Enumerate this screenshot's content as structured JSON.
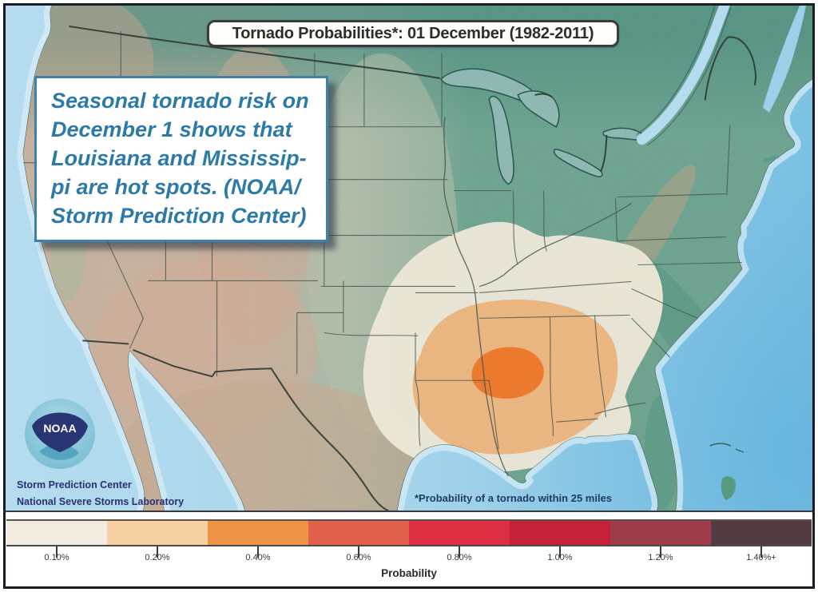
{
  "map": {
    "title": "Tornado Probabilities*: 01 December (1982-2011)",
    "footnote": "*Probability of a tornado within 25 miles",
    "agency_line1": "Storm Prediction Center",
    "agency_line2": "National Severe Storms Laboratory",
    "logo_text": "NOAA",
    "contours": [
      {
        "level": "0.10%",
        "color": "#ece7d7"
      },
      {
        "level": "0.20%",
        "color": "#e9b47d"
      },
      {
        "level": "0.40%",
        "color": "#ec7a2e"
      }
    ]
  },
  "caption": {
    "lines": [
      "Seasonal tornado risk on",
      "December 1 shows that",
      "Louisiana and Mississip-",
      "pi are hot spots. (NOAA/",
      "Storm Prediction Center)"
    ],
    "text_color": "#2b7aa8",
    "border_color": "#3d81ad"
  },
  "legend": {
    "title": "Probability",
    "segments": [
      {
        "label": "0.10%",
        "color": "#f2ebdf"
      },
      {
        "label": "0.20%",
        "color": "#f6d1a3"
      },
      {
        "label": "0.40%",
        "color": "#ee9447"
      },
      {
        "label": "0.60%",
        "color": "#e0604b"
      },
      {
        "label": "0.80%",
        "color": "#dc2f43"
      },
      {
        "label": "1.00%",
        "color": "#c42039"
      },
      {
        "label": "1.20%",
        "color": "#9e3c4c"
      },
      {
        "label": "1.40%+",
        "color": "#523b41"
      }
    ]
  }
}
